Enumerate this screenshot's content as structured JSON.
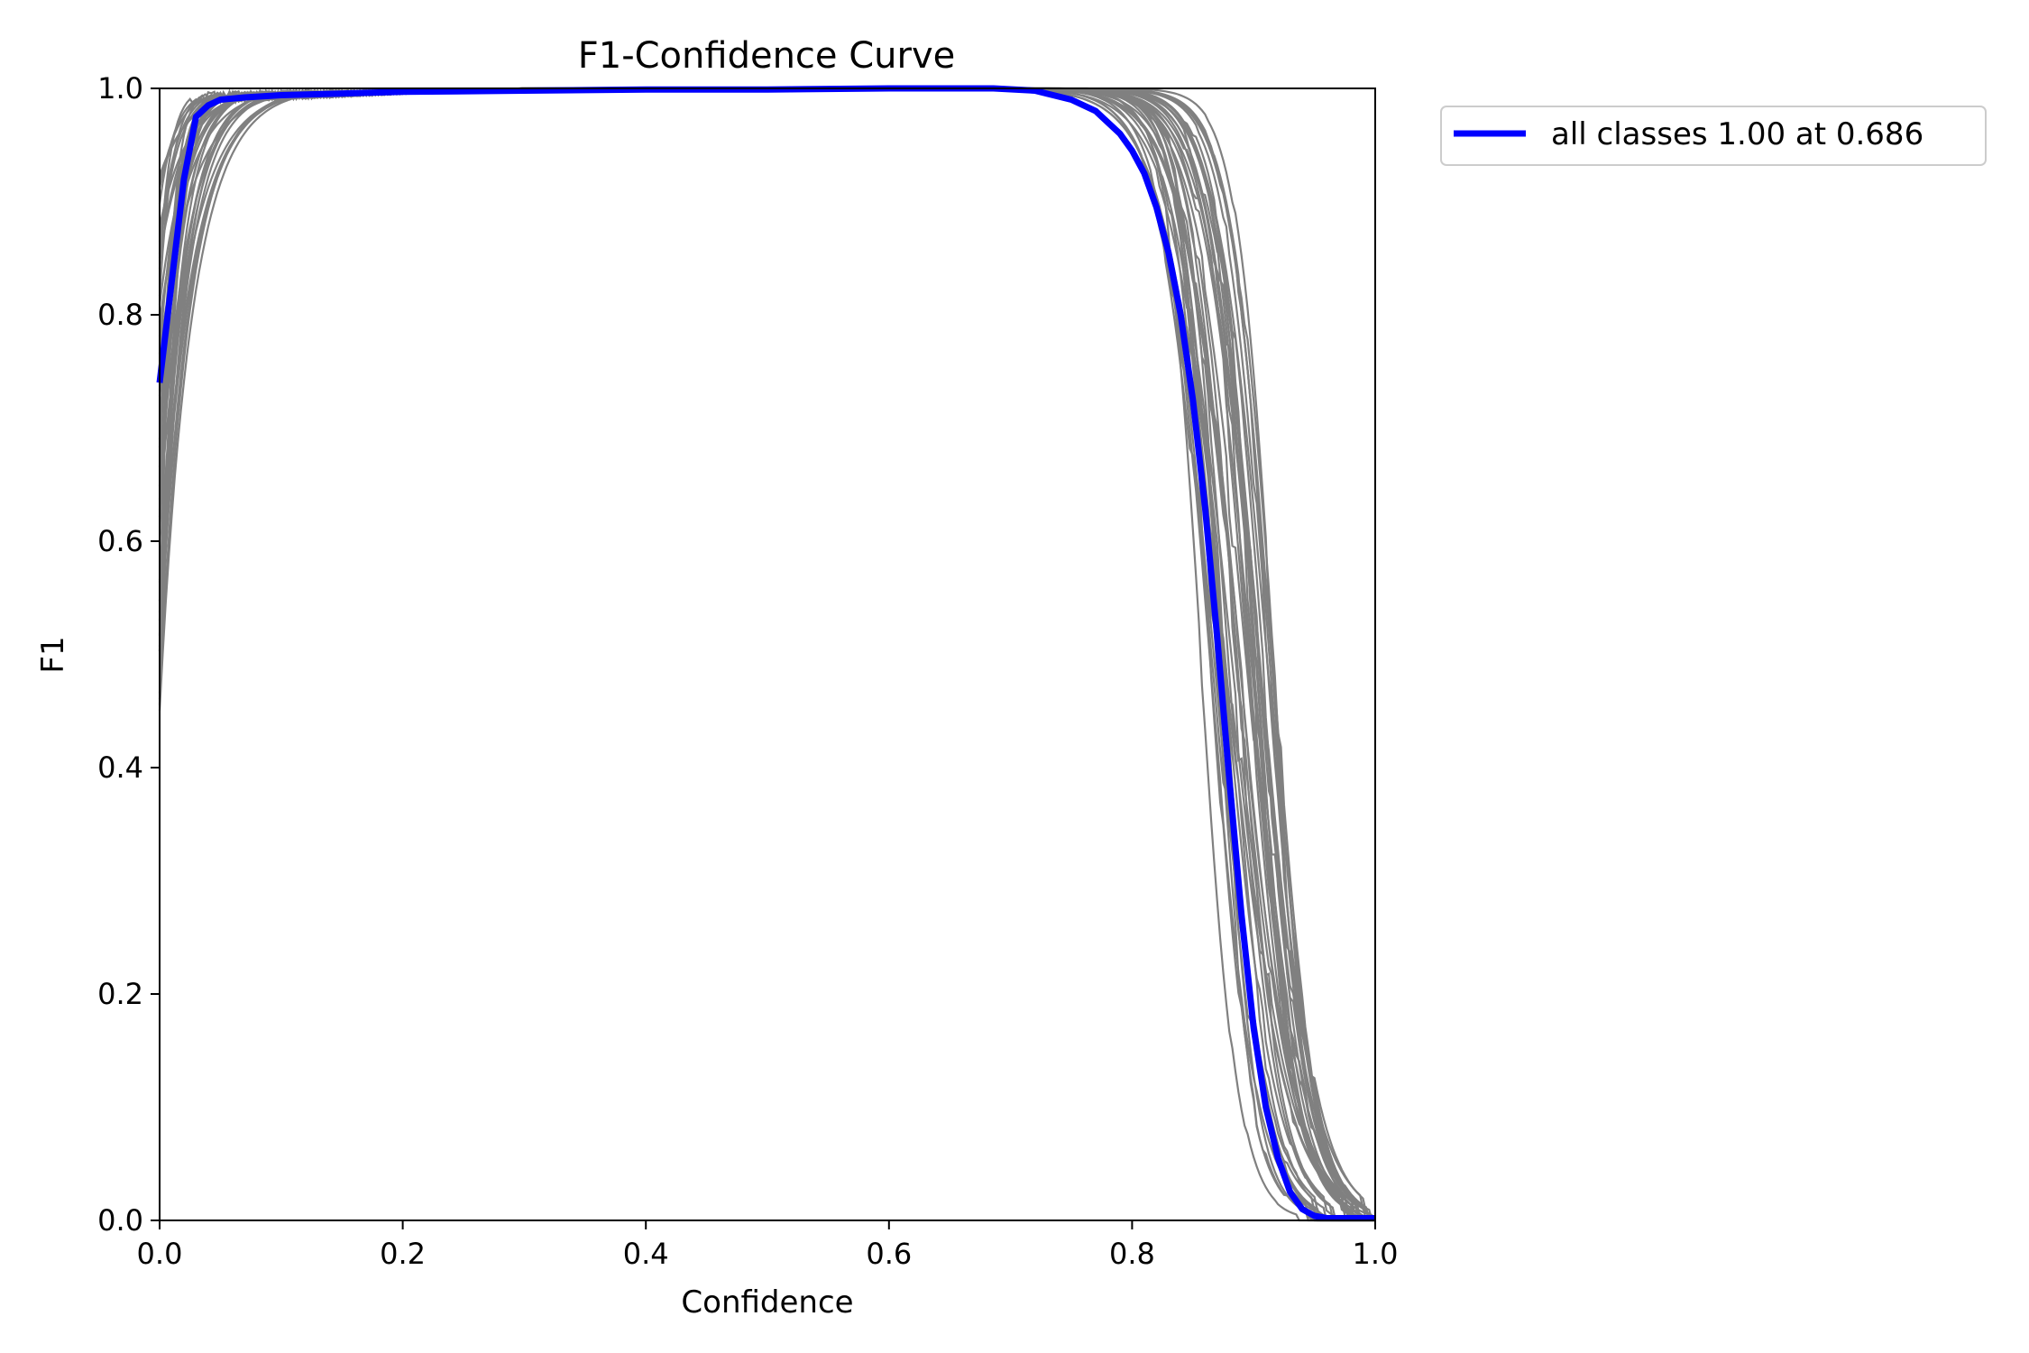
{
  "chart_data": {
    "type": "line",
    "title": "F1-Confidence Curve",
    "xlabel": "Confidence",
    "ylabel": "F1",
    "xlim": [
      0.0,
      1.0
    ],
    "ylim": [
      0.0,
      1.0
    ],
    "xticks": [
      "0.0",
      "0.2",
      "0.4",
      "0.6",
      "0.8",
      "1.0"
    ],
    "yticks": [
      "0.0",
      "0.2",
      "0.4",
      "0.6",
      "0.8",
      "1.0"
    ],
    "grid": false,
    "legend_position": "outside-top-right",
    "class_curve_color": "#808080",
    "class_curve_count": 40,
    "series": [
      {
        "name": "all classes 1.00 at 0.686",
        "color": "#0000ff",
        "x": [
          0.0,
          0.01,
          0.02,
          0.03,
          0.04,
          0.05,
          0.07,
          0.1,
          0.2,
          0.3,
          0.4,
          0.5,
          0.6,
          0.686,
          0.72,
          0.75,
          0.77,
          0.79,
          0.8,
          0.81,
          0.82,
          0.83,
          0.84,
          0.85,
          0.86,
          0.87,
          0.88,
          0.89,
          0.9,
          0.91,
          0.92,
          0.93,
          0.94,
          0.95,
          0.96,
          0.97,
          1.0
        ],
        "values": [
          0.74,
          0.83,
          0.92,
          0.975,
          0.985,
          0.99,
          0.992,
          0.994,
          0.997,
          0.998,
          0.999,
          0.999,
          1.0,
          1.0,
          0.998,
          0.99,
          0.98,
          0.96,
          0.945,
          0.925,
          0.895,
          0.855,
          0.8,
          0.725,
          0.63,
          0.515,
          0.39,
          0.27,
          0.17,
          0.1,
          0.055,
          0.025,
          0.01,
          0.004,
          0.002,
          0.002,
          0.002
        ]
      }
    ]
  }
}
